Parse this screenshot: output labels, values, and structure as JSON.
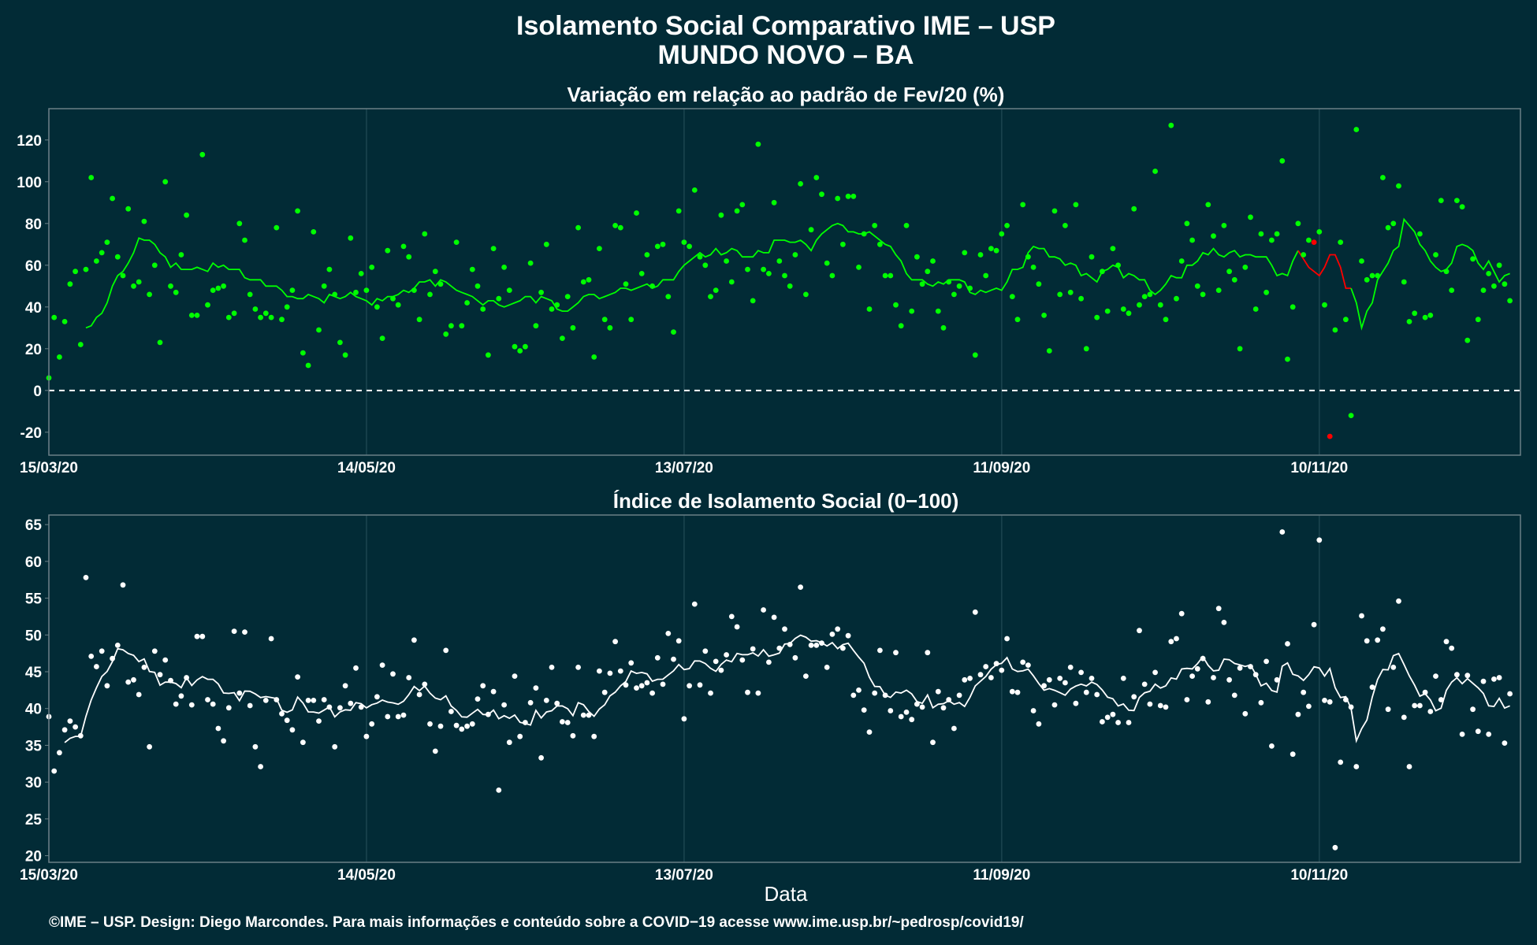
{
  "figure": {
    "title": "Isolamento Social Comparativo IME – USP",
    "subtitle": "MUNDO NOVO – BA",
    "xlabel": "Data",
    "footer": "©IME – USP. Design: Diego Marcondes. Para mais informações e conteúdo sobre a COVID−19 acesse www.ime.usp.br/~pedrosp/covid19/",
    "background": "#022b36",
    "panel_border": "#6b7f86",
    "grid_color": "#1c4550"
  },
  "chart_data": [
    {
      "type": "scatter",
      "title": "Variação em relação ao padrão de Fev/20 (%)",
      "point_color": "#00ff00",
      "line_color": "#00ff00",
      "missing_color": "#ff0000",
      "xlim": [
        "2020-03-15",
        "2020-12-18"
      ],
      "ylim": [
        -31,
        135
      ],
      "yticks": [
        -20,
        0,
        20,
        40,
        60,
        80,
        100,
        120
      ],
      "xticks": [
        "15/03/20",
        "14/05/20",
        "13/07/20",
        "11/09/20",
        "10/11/20"
      ],
      "reference_line": 0,
      "start_date": "2020-03-15",
      "values": [
        6,
        35,
        16,
        33,
        51,
        57,
        22,
        58,
        102,
        62,
        66,
        71,
        92,
        64,
        55,
        87,
        50,
        52,
        81,
        46,
        60,
        23,
        100,
        50,
        47,
        65,
        84,
        36,
        36,
        113,
        41,
        48,
        49,
        50,
        35,
        37,
        80,
        72,
        46,
        39,
        35,
        37,
        35,
        78,
        34,
        40,
        48,
        86,
        18,
        12,
        76,
        29,
        50,
        58,
        46,
        23,
        17,
        73,
        47,
        56,
        48,
        59,
        40,
        25,
        67,
        44,
        41,
        69,
        64,
        48,
        34,
        75,
        46,
        57,
        51,
        27,
        31,
        71,
        31,
        42,
        58,
        50,
        39,
        17,
        68,
        44,
        59,
        48,
        21,
        19,
        21,
        61,
        31,
        47,
        70,
        39,
        41,
        25,
        45,
        30,
        78,
        52,
        53,
        16,
        68,
        34,
        30,
        79,
        78,
        51,
        34,
        85,
        56,
        65,
        50,
        69,
        70,
        45,
        28,
        86,
        71,
        69,
        96,
        64,
        60,
        45,
        48,
        84,
        62,
        52,
        86,
        89,
        58,
        43,
        118,
        58,
        56,
        90,
        62,
        55,
        50,
        65,
        99,
        46,
        77,
        102,
        94,
        61,
        55,
        92,
        70,
        93,
        93,
        59,
        75,
        39,
        79,
        70,
        55,
        55,
        41,
        31,
        79,
        38,
        64,
        51,
        57,
        62,
        38,
        30,
        52,
        46,
        50,
        66,
        49,
        17,
        65,
        55,
        68,
        67,
        75,
        79,
        45,
        34,
        89,
        64,
        59,
        51,
        36,
        19,
        86,
        46,
        79,
        47,
        89,
        44,
        20,
        64,
        35,
        57,
        38,
        68,
        60,
        39,
        37,
        87,
        41,
        45,
        46,
        105,
        41,
        34,
        127,
        44,
        62,
        80,
        72,
        50,
        46,
        89,
        74,
        48,
        79,
        57,
        53,
        20,
        59,
        83,
        39,
        75,
        47,
        72,
        75,
        110,
        15,
        40,
        80,
        65,
        72,
        71,
        76,
        41,
        -22,
        29,
        71,
        34,
        -12,
        125,
        62,
        53,
        55,
        55,
        102,
        78,
        80,
        98,
        52,
        33,
        37,
        75,
        35,
        36,
        65,
        91,
        57,
        48,
        91,
        88,
        24,
        63,
        34,
        48,
        56,
        50,
        60,
        51,
        43
      ],
      "missing_days": [
        239,
        242
      ],
      "moving_average": [
        30,
        31,
        35,
        37,
        42,
        50,
        55,
        57,
        61,
        66,
        73,
        72,
        72,
        70,
        66,
        64,
        59,
        61,
        58,
        58,
        58,
        59,
        58,
        57,
        61,
        59,
        60,
        58,
        58,
        58,
        54,
        53,
        53,
        53,
        50,
        50,
        50,
        48,
        45,
        45,
        44,
        44,
        46,
        45,
        44,
        42,
        46,
        45,
        44,
        45,
        47,
        45,
        44,
        43,
        41,
        44,
        43,
        45,
        45,
        46,
        48,
        47,
        49,
        52,
        52,
        53,
        50,
        53,
        52,
        50,
        48,
        47,
        46,
        45,
        43,
        41,
        43,
        43,
        41,
        40,
        41,
        42,
        43,
        45,
        45,
        42,
        45,
        44,
        43,
        39,
        38,
        38,
        40,
        42,
        45,
        46,
        46,
        44,
        45,
        46,
        47,
        49,
        49,
        48,
        49,
        50,
        51,
        49,
        50,
        53,
        53,
        53,
        57,
        60,
        62,
        64,
        66,
        64,
        65,
        68,
        65,
        66,
        68,
        67,
        64,
        64,
        64,
        67,
        66,
        66,
        72,
        72,
        72,
        71,
        71,
        72,
        70,
        67,
        72,
        75,
        77,
        79,
        80,
        79,
        76,
        76,
        75,
        75,
        76,
        74,
        72,
        70,
        69,
        65,
        62,
        56,
        53,
        53,
        53,
        51,
        50,
        52,
        51,
        53,
        53,
        53,
        52,
        47,
        46,
        48,
        47,
        48,
        49,
        48,
        52,
        58,
        58,
        59,
        66,
        69,
        68,
        68,
        64,
        64,
        63,
        60,
        61,
        60,
        55,
        56,
        54,
        52,
        57,
        58,
        60,
        59,
        54,
        56,
        55,
        53,
        53,
        48,
        46,
        48,
        51,
        55,
        54,
        54,
        60,
        60,
        62,
        66,
        65,
        68,
        65,
        64,
        66,
        67,
        64,
        65,
        65,
        64,
        64,
        64,
        60,
        55,
        56,
        55,
        62,
        67,
        63,
        59,
        57,
        55,
        59,
        65,
        65,
        59,
        49,
        49,
        42,
        30,
        38,
        42,
        53,
        57,
        61,
        67,
        69,
        82,
        79,
        76,
        70,
        67,
        62,
        59,
        57,
        58,
        61,
        69,
        70,
        69,
        67,
        61,
        58,
        62,
        57,
        52,
        55,
        56
      ]
    },
    {
      "type": "scatter",
      "title": "Índice de Isolamento Social (0−100)",
      "point_color": "#ffffff",
      "line_color": "#ffffff",
      "xlim": [
        "2020-03-15",
        "2020-12-18"
      ],
      "ylim": [
        19.1,
        66.3
      ],
      "yticks": [
        20,
        25,
        30,
        35,
        40,
        45,
        50,
        55,
        60,
        65
      ],
      "xticks": [
        "15/03/20",
        "14/05/20",
        "13/07/20",
        "11/09/20",
        "10/11/20"
      ],
      "start_date": "2020-03-15",
      "values": [
        38.9,
        31.5,
        34,
        37.1,
        38.3,
        37.5,
        36.3,
        57.8,
        47.1,
        45.7,
        47.8,
        43.1,
        46.8,
        48.6,
        56.8,
        43.6,
        43.9,
        41.9,
        45.6,
        34.8,
        47.8,
        44.6,
        46.6,
        43.8,
        40.6,
        41.7,
        44.2,
        40.5,
        49.8,
        49.8,
        41.2,
        40.6,
        37.3,
        35.6,
        40.1,
        50.5,
        42.1,
        50.4,
        40.4,
        34.8,
        32.1,
        41.1,
        49.5,
        41.2,
        39.3,
        38.4,
        37.1,
        44.3,
        35.4,
        41.1,
        41.1,
        38.3,
        41.2,
        40.2,
        34.8,
        40.1,
        43.1,
        40.7,
        45.5,
        40.2,
        36.2,
        37.9,
        41.6,
        45.9,
        38.9,
        44.7,
        38.9,
        39.1,
        44.2,
        49.3,
        41.9,
        43.3,
        37.9,
        34.2,
        37.6,
        47.9,
        39.6,
        37.7,
        37.2,
        37.6,
        37.9,
        41.3,
        43.1,
        39.2,
        42.3,
        28.9,
        40.5,
        35.4,
        44.4,
        36.2,
        38.1,
        40.8,
        42.8,
        33.3,
        41.1,
        45.6,
        40.7,
        38.2,
        38.1,
        36.3,
        45.6,
        39.1,
        39.1,
        36.2,
        45.1,
        42.2,
        44.8,
        49.1,
        45.1,
        43.2,
        46.2,
        42.8,
        43.1,
        43.5,
        42.1,
        46.9,
        43.3,
        50.2,
        46.7,
        49.2,
        38.6,
        43.1,
        54.2,
        43.2,
        47.8,
        42.1,
        46.4,
        45.2,
        47.3,
        52.5,
        51.1,
        46.6,
        42.2,
        48.1,
        42.1,
        53.4,
        46.3,
        52.4,
        48.2,
        50.8,
        48.7,
        46.9,
        56.5,
        44.4,
        48.6,
        48.6,
        48.9,
        45.6,
        50.1,
        50.8,
        48.2,
        49.9,
        41.8,
        42.5,
        39.8,
        36.8,
        42.1,
        47.9,
        41.8,
        39.7,
        47.6,
        38.9,
        39.5,
        38.5,
        40.6,
        40.2,
        47.6,
        35.4,
        42.3,
        40.1,
        41.2,
        37.3,
        41.8,
        43.9,
        44.1,
        53.1,
        44.6,
        45.7,
        44.2,
        46.1,
        45.2,
        49.5,
        42.3,
        42.2,
        46.3,
        45.9,
        39.7,
        37.9,
        43.1,
        43.9,
        40.5,
        44.1,
        43.5,
        45.6,
        40.7,
        44.9,
        42.2,
        44.1,
        41.9,
        38.2,
        38.8,
        39.2,
        38.1,
        44.1,
        38.1,
        41.6,
        50.6,
        43.3,
        40.6,
        44.9,
        40.4,
        40.2,
        49.1,
        49.5,
        52.9,
        41.2,
        44.4,
        45.4,
        46.8,
        40.9,
        44.2,
        53.6,
        51.7,
        43.9,
        41.8,
        45.5,
        39.3,
        45.7,
        44.6,
        40.8,
        46.4,
        34.9,
        43.9,
        64,
        48.8,
        33.8,
        39.2,
        42.2,
        40.3,
        51.4,
        62.9,
        41.1,
        40.9,
        21.1,
        32.7,
        41.2,
        40.2,
        32.1,
        52.6,
        49.2,
        42.9,
        49.3,
        50.8,
        39.9,
        45.6,
        54.6,
        38.8,
        32.1,
        40.4,
        40.4,
        42.2,
        39.6,
        44.4,
        41.2,
        49.1,
        48.2,
        44.6,
        36.5,
        44.5,
        39.9,
        36.9,
        43.7,
        36.5,
        44,
        44.2,
        35.3,
        42
      ]
    }
  ]
}
